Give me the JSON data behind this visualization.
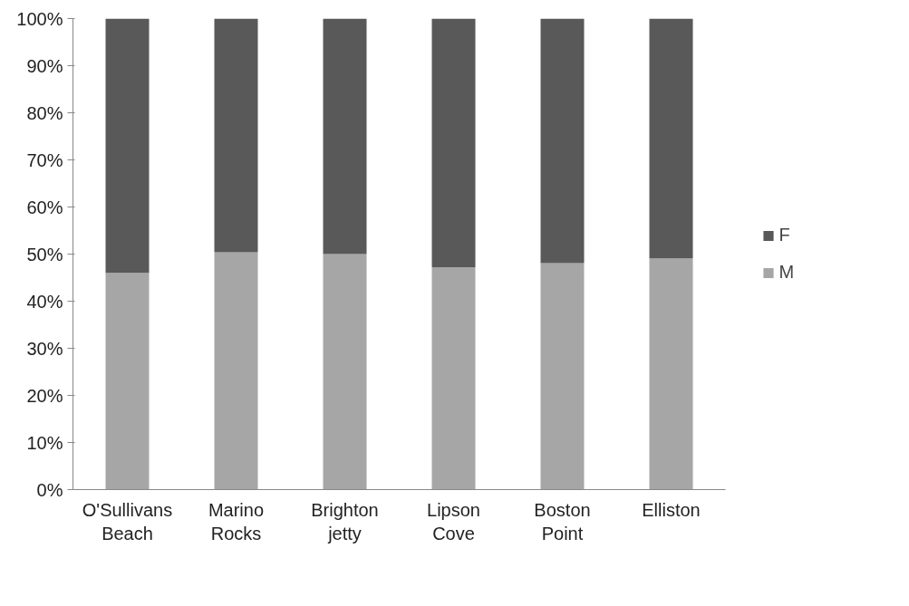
{
  "chart_data": {
    "type": "bar",
    "stacked": true,
    "categories": [
      "O'Sullivans Beach",
      "Marino Rocks",
      "Brighton jetty",
      "Lipson Cove",
      "Boston Point",
      "Elliston"
    ],
    "series": [
      {
        "name": "M",
        "color": "#a6a6a6",
        "values": [
          46,
          50.4,
          50,
          47.2,
          48.1,
          49.1
        ]
      },
      {
        "name": "F",
        "color": "#595959",
        "values": [
          54,
          49.6,
          50,
          52.8,
          51.9,
          50.9
        ]
      }
    ],
    "ylim": [
      0,
      100
    ],
    "yticks": [
      {
        "value": 0,
        "label": "0%"
      },
      {
        "value": 10,
        "label": "10%"
      },
      {
        "value": 20,
        "label": "20%"
      },
      {
        "value": 30,
        "label": "30%"
      },
      {
        "value": 40,
        "label": "40%"
      },
      {
        "value": 50,
        "label": "50%"
      },
      {
        "value": 60,
        "label": "60%"
      },
      {
        "value": 70,
        "label": "70%"
      },
      {
        "value": 80,
        "label": "80%"
      },
      {
        "value": 90,
        "label": "90%"
      },
      {
        "value": 100,
        "label": "100%"
      }
    ],
    "grid": false,
    "legend": "right"
  }
}
